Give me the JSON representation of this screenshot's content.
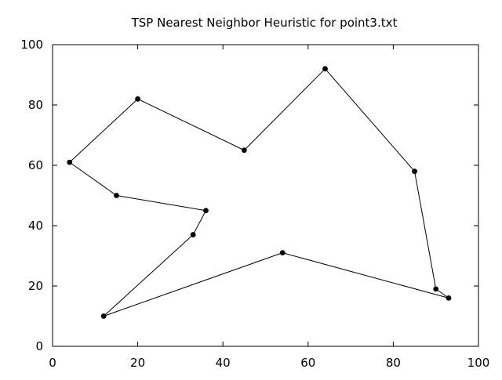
{
  "chart_data": {
    "type": "line",
    "title": "TSP Nearest Neighbor Heuristic for point3.txt",
    "xlabel": "",
    "ylabel": "",
    "xlim": [
      0,
      100
    ],
    "ylim": [
      0,
      100
    ],
    "xticks": [
      0,
      20,
      40,
      60,
      80,
      100
    ],
    "yticks": [
      0,
      20,
      40,
      60,
      80,
      100
    ],
    "grid": false,
    "legend": "none",
    "series": [
      {
        "markers": true,
        "color": "#000000",
        "points": [
          {
            "x": 4,
            "y": 61
          },
          {
            "x": 20,
            "y": 82
          },
          {
            "x": 45,
            "y": 65
          },
          {
            "x": 64,
            "y": 92
          },
          {
            "x": 85,
            "y": 58
          },
          {
            "x": 90,
            "y": 19
          },
          {
            "x": 93,
            "y": 16
          },
          {
            "x": 54,
            "y": 31
          },
          {
            "x": 12,
            "y": 10
          },
          {
            "x": 33,
            "y": 37
          },
          {
            "x": 36,
            "y": 45
          },
          {
            "x": 15,
            "y": 50
          },
          {
            "x": 4,
            "y": 61
          }
        ]
      }
    ]
  }
}
